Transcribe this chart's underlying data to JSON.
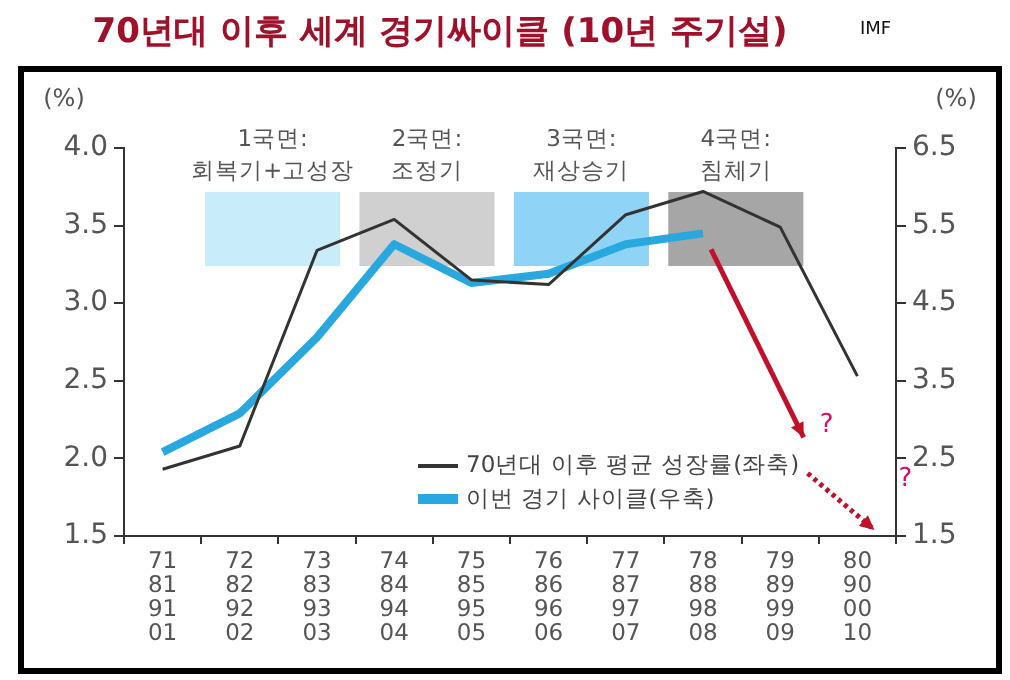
{
  "chart_data": {
    "type": "line",
    "title": "70년대 이후 세계 경기싸이클 (10년 주기설)",
    "ylabel": "(%)",
    "y2label": "(%)",
    "categories": [
      "71\n81\n91\n01",
      "72\n82\n92\n02",
      "73\n83\n93\n03",
      "74\n84\n94\n04",
      "75\n85\n95\n05",
      "76\n86\n96\n06",
      "77\n87\n97\n07",
      "78\n88\n98\n08",
      "79\n89\n99\n09",
      "80\n90\n00\n10"
    ],
    "ylim": [
      1.5,
      4.0
    ],
    "yticks": [
      1.5,
      {
        "value": 2,
        "label": "2.0"
      },
      2.5,
      {
        "value": 3,
        "label": "3.0"
      },
      3.5,
      {
        "value": 4,
        "label": "4.0"
      }
    ],
    "y2lim": [
      1.5,
      6.5
    ],
    "y2ticks": [
      1.5,
      2.5,
      3.5,
      4.5,
      5.5,
      6.5
    ],
    "series": [
      {
        "name": "70년대 이후 평균 성장률(좌축)",
        "color": "#333333",
        "values": [
          1.93,
          2.08,
          3.34,
          3.54,
          3.15,
          3.12,
          3.57,
          3.72,
          3.49,
          2.53
        ]
      },
      {
        "name": "이번 경기 사이클(우축)",
        "color": "#29a8e0",
        "axis": "y2",
        "values": [
          2.58,
          3.08,
          4.06,
          5.26,
          4.76,
          4.88,
          5.26,
          5.4,
          null,
          null
        ]
      }
    ],
    "bands": [
      {
        "axis": "x",
        "from": "72\n82\n92\n02",
        "to": "73\n83\n93\n03",
        "label": "1국면:\n회복기+고성장",
        "color": "#c9ecfa"
      },
      {
        "axis": "x",
        "from": "74\n84\n94\n04",
        "to": "75\n85\n95\n05",
        "label": "2국면:\n조정기",
        "color": "#d0d0d0"
      },
      {
        "axis": "x",
        "from": "76\n86\n96\n06",
        "to": "77\n87\n97\n07",
        "label": "3국면:\n재상승기",
        "color": "#8fd3f7"
      },
      {
        "axis": "x",
        "from": "78\n88\n98\n08",
        "to": "79\n89\n99\n09",
        "label": "4국면:\n침체기",
        "color": "#a6a6a6"
      }
    ],
    "legend": "bottom right",
    "grid": false,
    "marker": "none",
    "annotations": [
      "IMF",
      "?",
      "?"
    ]
  }
}
